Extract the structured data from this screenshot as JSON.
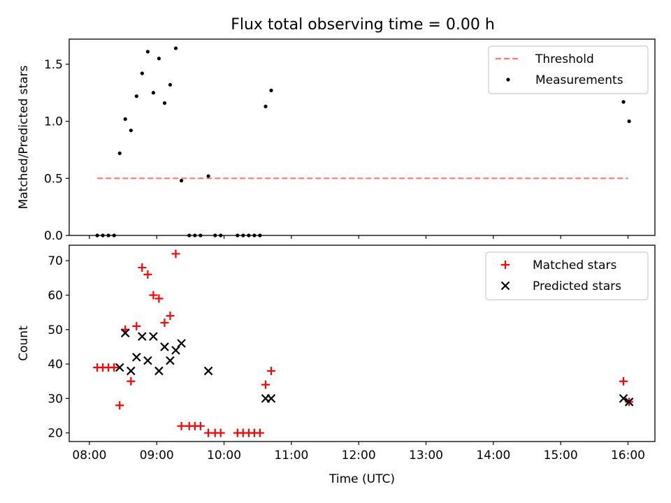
{
  "figure": {
    "title": "Flux total observing time = 0.00 h"
  },
  "chart_data": [
    {
      "type": "scatter",
      "panel": "top",
      "title": "Flux total observing time = 0.00 h",
      "xlabel": "",
      "ylabel": "Matched/Predicted stars",
      "xlim": [
        7.7,
        16.4
      ],
      "ylim": [
        0,
        1.72
      ],
      "xticks": [
        8,
        9,
        10,
        11,
        12,
        13,
        14,
        15,
        16
      ],
      "yticks": [
        0.0,
        0.5,
        1.0,
        1.5
      ],
      "ytick_labels": [
        "0.0",
        "0.5",
        "1.0",
        "1.5"
      ],
      "show_x_tick_labels": false,
      "grid": false,
      "legend_position": "top-right",
      "threshold": {
        "name": "Threshold",
        "value": 0.5,
        "x_range": [
          8.117,
          16.0
        ],
        "color": "#ff7777",
        "style": "dashed"
      },
      "series": [
        {
          "name": "Measurements",
          "marker": "dot",
          "color": "#000000",
          "x": [
            8.117,
            8.2,
            8.283,
            8.367,
            8.45,
            8.533,
            8.617,
            8.7,
            8.783,
            8.867,
            8.95,
            9.033,
            9.117,
            9.2,
            9.283,
            9.367,
            9.483,
            9.567,
            9.65,
            9.767,
            9.867,
            9.95,
            10.2,
            10.283,
            10.367,
            10.45,
            10.533,
            10.617,
            10.7,
            15.933,
            16.017
          ],
          "y": [
            0.0,
            0.0,
            0.0,
            0.0,
            0.72,
            1.02,
            0.92,
            1.22,
            1.42,
            1.61,
            1.25,
            1.55,
            1.16,
            1.32,
            1.64,
            0.48,
            0.0,
            0.0,
            0.0,
            0.52,
            0.0,
            0.0,
            0.0,
            0.0,
            0.0,
            0.0,
            0.0,
            1.13,
            1.27,
            1.17,
            1.0
          ]
        }
      ]
    },
    {
      "type": "scatter",
      "panel": "bottom",
      "xlabel": "Time (UTC)",
      "ylabel": "Count",
      "xlim": [
        7.7,
        16.4
      ],
      "ylim": [
        17.5,
        74.5
      ],
      "xticks": [
        8,
        9,
        10,
        11,
        12,
        13,
        14,
        15,
        16
      ],
      "xtick_labels": [
        "08:00",
        "09:00",
        "10:00",
        "11:00",
        "12:00",
        "13:00",
        "14:00",
        "15:00",
        "16:00"
      ],
      "yticks": [
        20,
        30,
        40,
        50,
        60,
        70
      ],
      "ytick_labels": [
        "20",
        "30",
        "40",
        "50",
        "60",
        "70"
      ],
      "grid": false,
      "legend_position": "top-right",
      "series": [
        {
          "name": "Matched stars",
          "marker": "plus",
          "color": "#ff0000",
          "x": [
            8.117,
            8.2,
            8.283,
            8.367,
            8.45,
            8.533,
            8.617,
            8.7,
            8.783,
            8.867,
            8.95,
            9.033,
            9.117,
            9.2,
            9.283,
            9.367,
            9.483,
            9.567,
            9.65,
            9.767,
            9.867,
            9.95,
            10.2,
            10.283,
            10.367,
            10.45,
            10.533,
            10.617,
            10.7,
            15.933,
            16.017
          ],
          "y": [
            39,
            39,
            39,
            39,
            28,
            50,
            35,
            51,
            68,
            66,
            60,
            59,
            52,
            54,
            72,
            22,
            22,
            22,
            22,
            20,
            20,
            20,
            20,
            20,
            20,
            20,
            20,
            34,
            38,
            35,
            29
          ]
        },
        {
          "name": "Predicted stars",
          "marker": "x",
          "color": "#000000",
          "x": [
            8.45,
            8.533,
            8.617,
            8.7,
            8.783,
            8.867,
            8.95,
            9.033,
            9.117,
            9.2,
            9.283,
            9.367,
            9.767,
            10.617,
            10.7,
            15.933,
            16.017
          ],
          "y": [
            39,
            49,
            38,
            42,
            48,
            41,
            48,
            38,
            45,
            41,
            44,
            46,
            38,
            30,
            30,
            30,
            29
          ]
        }
      ]
    }
  ]
}
